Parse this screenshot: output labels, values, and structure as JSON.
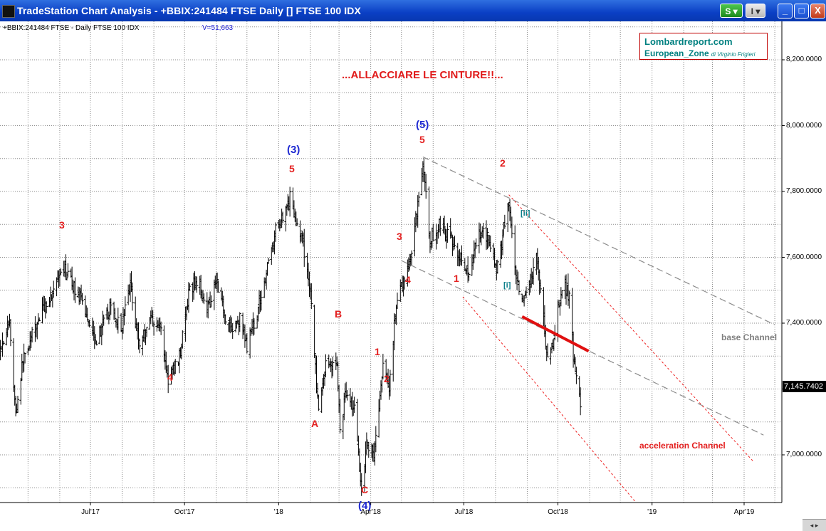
{
  "window": {
    "title": "TradeStation Chart Analysis - +BBIX:241484 FTSE Daily [] FTSE 100 IDX",
    "s_button": "S",
    "i_button": "I",
    "minimize": "_",
    "maximize": "□",
    "close": "X"
  },
  "chart_header": {
    "symbol": "+BBIX:241484 FTSE - Daily  FTSE 100 IDX",
    "volume": "V=51,663"
  },
  "logo": {
    "line1": "Lombardreport.com",
    "line2": "European_Zone",
    "byline": "di Virginio Frigieri"
  },
  "annotations": {
    "headline": "...ALLACCIARE LE CINTURE!!...",
    "base_channel": "base Channel",
    "acceleration_channel": "acceleration Channel",
    "wave_labels": [
      {
        "text": "3",
        "color": "red"
      },
      {
        "text": "4",
        "color": "red"
      },
      {
        "text": "(3)",
        "color": "blue"
      },
      {
        "text": "5",
        "color": "red"
      },
      {
        "text": "A",
        "color": "red"
      },
      {
        "text": "B",
        "color": "red"
      },
      {
        "text": "C",
        "color": "red"
      },
      {
        "text": "(4)",
        "color": "blue"
      },
      {
        "text": "1",
        "color": "red"
      },
      {
        "text": "2",
        "color": "red"
      },
      {
        "text": "3",
        "color": "red"
      },
      {
        "text": "4",
        "color": "red"
      },
      {
        "text": "(5)",
        "color": "blue"
      },
      {
        "text": "5",
        "color": "red"
      },
      {
        "text": "1",
        "color": "red"
      },
      {
        "text": "2",
        "color": "red"
      },
      {
        "text": "[i]",
        "color": "teal"
      },
      {
        "text": "[ii]",
        "color": "teal"
      }
    ]
  },
  "chart_data": {
    "type": "ohlc",
    "y_axis": {
      "ticks": [
        "8,200.0000",
        "8,000.0000",
        "7,800.0000",
        "7,600.0000",
        "7,400.0000",
        "7,200.0000",
        "7,000.0000"
      ],
      "range": [
        6800,
        8340
      ]
    },
    "x_axis": {
      "ticks": [
        "Jul'17",
        "Oct'17",
        "'18",
        "Apr'18",
        "Jul'18",
        "Oct'18",
        "'19",
        "Apr'19"
      ]
    },
    "last_price": "7,145.7402",
    "grid": true,
    "price_path": [
      [
        "2017-04-03",
        7320
      ],
      [
        "2017-04-13",
        7400
      ],
      [
        "2017-04-19",
        7120
      ],
      [
        "2017-04-26",
        7290
      ],
      [
        "2017-05-15",
        7440
      ],
      [
        "2017-06-02",
        7540
      ],
      [
        "2017-06-06",
        7560
      ],
      [
        "2017-06-20",
        7480
      ],
      [
        "2017-07-07",
        7350
      ],
      [
        "2017-07-21",
        7450
      ],
      [
        "2017-07-31",
        7380
      ],
      [
        "2017-08-09",
        7520
      ],
      [
        "2017-08-18",
        7330
      ],
      [
        "2017-08-29",
        7420
      ],
      [
        "2017-09-08",
        7380
      ],
      [
        "2017-09-15",
        7220
      ],
      [
        "2017-09-26",
        7300
      ],
      [
        "2017-10-06",
        7500
      ],
      [
        "2017-10-13",
        7530
      ],
      [
        "2017-10-24",
        7450
      ],
      [
        "2017-11-01",
        7540
      ],
      [
        "2017-11-10",
        7420
      ],
      [
        "2017-11-17",
        7380
      ],
      [
        "2017-11-24",
        7410
      ],
      [
        "2017-12-01",
        7330
      ],
      [
        "2017-12-08",
        7400
      ],
      [
        "2017-12-19",
        7540
      ],
      [
        "2017-12-29",
        7680
      ],
      [
        "2018-01-12",
        7780
      ],
      [
        "2018-01-24",
        7650
      ],
      [
        "2018-02-01",
        7500
      ],
      [
        "2018-02-09",
        7120
      ],
      [
        "2018-02-16",
        7280
      ],
      [
        "2018-02-27",
        7270
      ],
      [
        "2018-03-02",
        7080
      ],
      [
        "2018-03-08",
        7200
      ],
      [
        "2018-03-16",
        7140
      ],
      [
        "2018-03-23",
        6900
      ],
      [
        "2018-03-28",
        7040
      ],
      [
        "2018-04-04",
        7000
      ],
      [
        "2018-04-13",
        7260
      ],
      [
        "2018-04-19",
        7200
      ],
      [
        "2018-04-24",
        7400
      ],
      [
        "2018-05-01",
        7520
      ],
      [
        "2018-05-08",
        7560
      ],
      [
        "2018-05-15",
        7720
      ],
      [
        "2018-05-22",
        7880
      ],
      [
        "2018-05-29",
        7650
      ],
      [
        "2018-06-07",
        7700
      ],
      [
        "2018-06-19",
        7650
      ],
      [
        "2018-06-28",
        7600
      ],
      [
        "2018-07-06",
        7530
      ],
      [
        "2018-07-12",
        7640
      ],
      [
        "2018-07-18",
        7680
      ],
      [
        "2018-07-26",
        7660
      ],
      [
        "2018-08-02",
        7550
      ],
      [
        "2018-08-10",
        7700
      ],
      [
        "2018-08-14",
        7760
      ],
      [
        "2018-08-20",
        7550
      ],
      [
        "2018-08-27",
        7450
      ],
      [
        "2018-09-03",
        7500
      ],
      [
        "2018-09-10",
        7600
      ],
      [
        "2018-09-14",
        7500
      ],
      [
        "2018-09-21",
        7280
      ],
      [
        "2018-09-27",
        7350
      ],
      [
        "2018-10-03",
        7480
      ],
      [
        "2018-10-08",
        7510
      ],
      [
        "2018-10-12",
        7480
      ],
      [
        "2018-10-16",
        7300
      ],
      [
        "2018-10-23",
        7150
      ]
    ],
    "channels": {
      "base_upper": [
        [
          "2018-05-22",
          7905
        ],
        [
          "2019-05-01",
          7395
        ]
      ],
      "base_lower": [
        [
          "2018-05-01",
          7590
        ],
        [
          "2019-04-20",
          7060
        ]
      ],
      "accel_upper": [
        [
          "2018-08-14",
          7790
        ],
        [
          "2019-04-10",
          6980
        ]
      ],
      "accel_lower": [
        [
          "2018-06-30",
          7480
        ],
        [
          "2018-12-15",
          6860
        ]
      ],
      "red_segment": [
        [
          "2018-08-27",
          7420
        ],
        [
          "2018-10-31",
          7315
        ]
      ]
    }
  }
}
